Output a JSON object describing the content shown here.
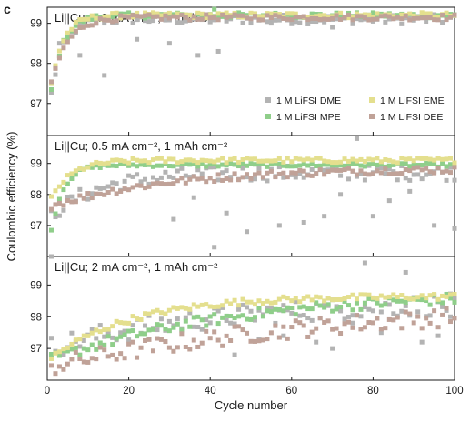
{
  "panel_label": "c",
  "colors": {
    "DME": "#b3b3b3",
    "MPE": "#8fce8a",
    "EME": "#e4df8e",
    "DEE": "#c0a298",
    "frame": "#1a1a1a"
  },
  "chart_data": [
    {
      "type": "scatter",
      "title": "Li||Cu; 0.2 mA cm⁻², 1 mAh cm⁻²",
      "xlabel": "Cycle number",
      "ylabel": "Coulombic efficiency (%)",
      "xlim": [
        0,
        100
      ],
      "ylim": [
        96.2,
        99.4
      ],
      "y_ticks": [
        97,
        98,
        99
      ],
      "x_ticks": [
        0,
        20,
        40,
        60,
        80,
        100
      ],
      "legend": "inside lower-right",
      "series": [
        {
          "name": "1 M LiFSI DME",
          "color_key": "DME",
          "start_y": 96.5,
          "plateau": 99.1,
          "rise_cycles": 3,
          "noise": 0.12,
          "outliers": [
            [
              3,
              98.5
            ],
            [
              8,
              98.2
            ],
            [
              14,
              97.7
            ],
            [
              22,
              98.6
            ],
            [
              30,
              98.5
            ],
            [
              37,
              98.2
            ],
            [
              42,
              98.3
            ],
            [
              55,
              99.0
            ],
            [
              70,
              98.9
            ]
          ]
        },
        {
          "name": "1 M LiFSI MPE",
          "color_key": "MPE",
          "start_y": 96.6,
          "plateau": 99.2,
          "rise_cycles": 3,
          "noise": 0.07,
          "outliers": [
            [
              41,
              99.35
            ]
          ]
        },
        {
          "name": "1 M LiFSI EME",
          "color_key": "EME",
          "start_y": 96.8,
          "plateau": 99.2,
          "rise_cycles": 3,
          "noise": 0.07,
          "outliers": []
        },
        {
          "name": "1 M LiFSI DEE",
          "color_key": "DEE",
          "start_y": 97.0,
          "plateau": 99.15,
          "rise_cycles": 4,
          "noise": 0.07,
          "outliers": []
        }
      ]
    },
    {
      "type": "scatter",
      "title": "Li||Cu; 0.5 mA cm⁻², 1 mAh cm⁻²",
      "xlabel": "Cycle number",
      "ylabel": "Coulombic efficiency (%)",
      "xlim": [
        0,
        100
      ],
      "ylim": [
        96.0,
        99.9
      ],
      "y_ticks": [
        97,
        98,
        99
      ],
      "x_ticks": [
        0,
        20,
        40,
        60,
        80,
        100
      ],
      "series": [
        {
          "name": "1 M LiFSI DME",
          "color_key": "DME",
          "start_y": 97.2,
          "plateau": 98.7,
          "rise_cycles": 12,
          "noise": 0.25,
          "outliers": [
            [
              31,
              97.2
            ],
            [
              36,
              97.9
            ],
            [
              41,
              96.3
            ],
            [
              44,
              97.4
            ],
            [
              49,
              96.8
            ],
            [
              57,
              97.0
            ],
            [
              63,
              97.1
            ],
            [
              68,
              97.3
            ],
            [
              72,
              98.0
            ],
            [
              76,
              99.8
            ],
            [
              80,
              97.3
            ],
            [
              84,
              97.8
            ],
            [
              89,
              98.1
            ],
            [
              95,
              97.0
            ],
            [
              100,
              96.9
            ]
          ]
        },
        {
          "name": "1 M LiFSI MPE",
          "color_key": "MPE",
          "start_y": 96.0,
          "plateau": 98.95,
          "rise_cycles": 3,
          "noise": 0.06,
          "outliers": []
        },
        {
          "name": "1 M LiFSI EME",
          "color_key": "EME",
          "start_y": 97.6,
          "plateau": 99.1,
          "rise_cycles": 5,
          "noise": 0.08,
          "outliers": []
        },
        {
          "name": "1 M LiFSI DEE",
          "color_key": "DEE",
          "start_y": 97.6,
          "plateau": 98.85,
          "rise_cycles": 30,
          "noise": 0.12,
          "outliers": []
        }
      ]
    },
    {
      "type": "scatter",
      "title": "Li||Cu; 2 mA cm⁻², 1 mAh cm⁻²",
      "xlabel": "Cycle number",
      "ylabel": "Coulombic efficiency (%)",
      "xlim": [
        0,
        100
      ],
      "ylim": [
        96.0,
        99.9
      ],
      "y_ticks": [
        97,
        98,
        99
      ],
      "x_ticks": [
        0,
        20,
        40,
        60,
        80,
        100
      ],
      "series": [
        {
          "name": "1 M LiFSI DME",
          "color_key": "DME",
          "start_y": 97.0,
          "plateau": 98.5,
          "rise_cycles": 40,
          "noise": 0.35,
          "outliers": [
            [
              1,
              99.9
            ],
            [
              46,
              96.8
            ],
            [
              52,
              97.3
            ],
            [
              58,
              97.4
            ],
            [
              66,
              97.2
            ],
            [
              70,
              97.0
            ],
            [
              75,
              97.8
            ],
            [
              78,
              99.7
            ],
            [
              82,
              97.5
            ],
            [
              88,
              99.4
            ],
            [
              92,
              97.2
            ],
            [
              96,
              97.4
            ],
            [
              99,
              98.0
            ]
          ]
        },
        {
          "name": "1 M LiFSI MPE",
          "color_key": "MPE",
          "start_y": 96.6,
          "plateau": 98.8,
          "rise_cycles": 45,
          "noise": 0.18,
          "outliers": []
        },
        {
          "name": "1 M LiFSI EME",
          "color_key": "EME",
          "start_y": 96.6,
          "plateau": 98.65,
          "rise_cycles": 20,
          "noise": 0.1,
          "outliers": []
        },
        {
          "name": "1 M LiFSI DEE",
          "color_key": "DEE",
          "start_y": 96.4,
          "plateau": 98.5,
          "rise_cycles": 70,
          "noise": 0.3,
          "outliers": []
        }
      ]
    }
  ]
}
